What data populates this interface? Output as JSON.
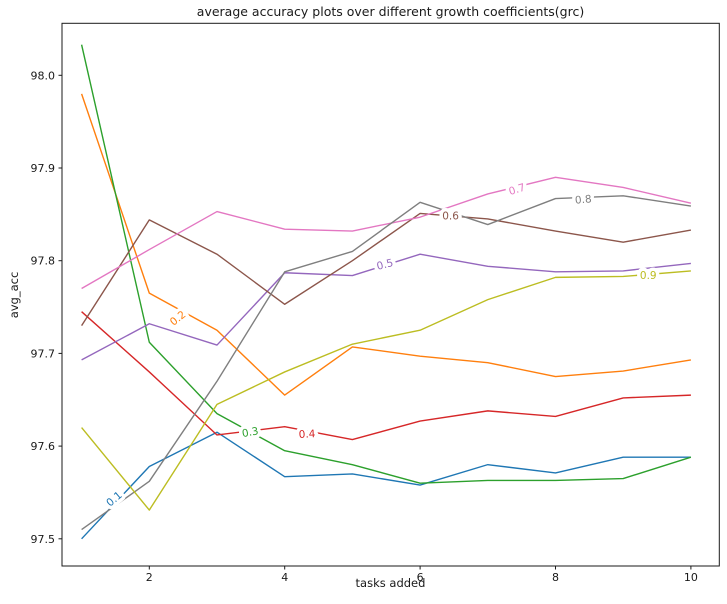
{
  "title": "average accuracy plots over different growth coefficients(grc)",
  "xlabel": "tasks added",
  "ylabel": "avg_acc",
  "chart_data": {
    "type": "line",
    "title": "average accuracy plots over different growth coefficients(grc)",
    "xlabel": "tasks added",
    "ylabel": "avg_acc",
    "x": [
      1,
      2,
      3,
      4,
      5,
      6,
      7,
      8,
      9,
      10
    ],
    "x_ticks": [
      2,
      4,
      6,
      8,
      10
    ],
    "y_ticks": [
      97.5,
      97.6,
      97.7,
      97.8,
      97.9,
      98.0
    ],
    "xlim": [
      0.71,
      10.42
    ],
    "ylim": [
      97.469,
      98.056
    ],
    "grid": false,
    "legend_position": "inline-line-labels",
    "series": [
      {
        "name": "0.1",
        "color": "#1f77b4",
        "values": [
          97.5,
          97.578,
          97.615,
          97.567,
          97.57,
          97.558,
          97.58,
          97.571,
          97.588,
          97.588
        ],
        "label": {
          "x": 1.48,
          "y": 97.543,
          "rot": -40
        }
      },
      {
        "name": "0.2",
        "color": "#ff7f0e",
        "values": [
          97.98,
          97.765,
          97.725,
          97.655,
          97.707,
          97.697,
          97.69,
          97.675,
          97.681,
          97.693
        ],
        "label": {
          "x": 2.42,
          "y": 97.738,
          "rot": -38
        }
      },
      {
        "name": "0.3",
        "color": "#2ca02c",
        "values": [
          98.033,
          97.712,
          97.635,
          97.595,
          97.58,
          97.56,
          97.563,
          97.563,
          97.565,
          97.588
        ],
        "label": {
          "x": 3.49,
          "y": 97.615,
          "rot": -10
        }
      },
      {
        "name": "0.4",
        "color": "#d62728",
        "values": [
          97.745,
          97.68,
          97.612,
          97.621,
          97.607,
          97.627,
          97.638,
          97.632,
          97.652,
          97.655
        ],
        "label": {
          "x": 4.33,
          "y": 97.613,
          "rot": -3
        }
      },
      {
        "name": "0.5",
        "color": "#9467bd",
        "values": [
          97.693,
          97.732,
          97.709,
          97.787,
          97.784,
          97.807,
          97.794,
          97.788,
          97.789,
          97.797
        ],
        "label": {
          "x": 5.48,
          "y": 97.796,
          "rot": -14
        }
      },
      {
        "name": "0.6",
        "color": "#8c564b",
        "values": [
          97.73,
          97.844,
          97.807,
          97.753,
          97.8,
          97.851,
          97.845,
          97.832,
          97.82,
          97.833
        ],
        "label": {
          "x": 6.45,
          "y": 97.848,
          "rot": 0
        }
      },
      {
        "name": "0.7",
        "color": "#e377c2",
        "values": [
          97.77,
          97.812,
          97.853,
          97.834,
          97.832,
          97.847,
          97.872,
          97.89,
          97.879,
          97.862
        ],
        "label": {
          "x": 7.43,
          "y": 97.877,
          "rot": -17
        }
      },
      {
        "name": "0.8",
        "color": "#7f7f7f",
        "values": [
          97.51,
          97.562,
          97.67,
          97.788,
          97.81,
          97.863,
          97.839,
          97.867,
          97.87,
          97.859
        ],
        "label": {
          "x": 8.41,
          "y": 97.866,
          "rot": -5
        }
      },
      {
        "name": "0.9",
        "color": "#bcbd22",
        "values": [
          97.62,
          97.531,
          97.645,
          97.68,
          97.71,
          97.725,
          97.758,
          97.782,
          97.783,
          97.789
        ],
        "label": {
          "x": 9.37,
          "y": 97.784,
          "rot": 0
        }
      }
    ]
  }
}
